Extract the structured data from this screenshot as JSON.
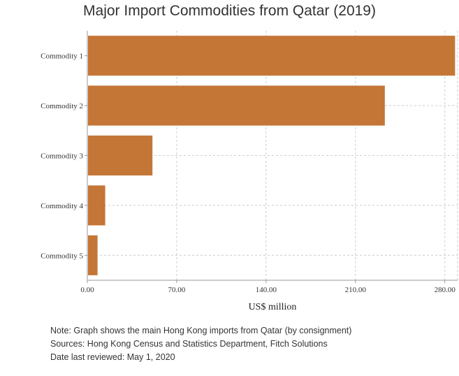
{
  "chart_data": {
    "type": "bar",
    "orientation": "horizontal",
    "title": "Major Import Commodities from Qatar (2019)",
    "xlabel": "US$ million",
    "ylabel": "",
    "categories": [
      "Commodity 1",
      "Commodity 2",
      "Commodity 3",
      "Commodity 4",
      "Commodity 5"
    ],
    "values": [
      288,
      233,
      51,
      14,
      8
    ],
    "xlim": [
      0,
      290
    ],
    "xticks": [
      "0.00",
      "70.00",
      "140.00",
      "210.00",
      "280.00"
    ],
    "grid": true,
    "bar_color": "#c47637"
  },
  "notes": {
    "note": "Note: Graph shows the main Hong Kong imports from Qatar (by consignment)",
    "sources": "Sources: Hong Kong Census and Statistics Department, Fitch Solutions",
    "reviewed": "Date last reviewed: May 1, 2020"
  }
}
